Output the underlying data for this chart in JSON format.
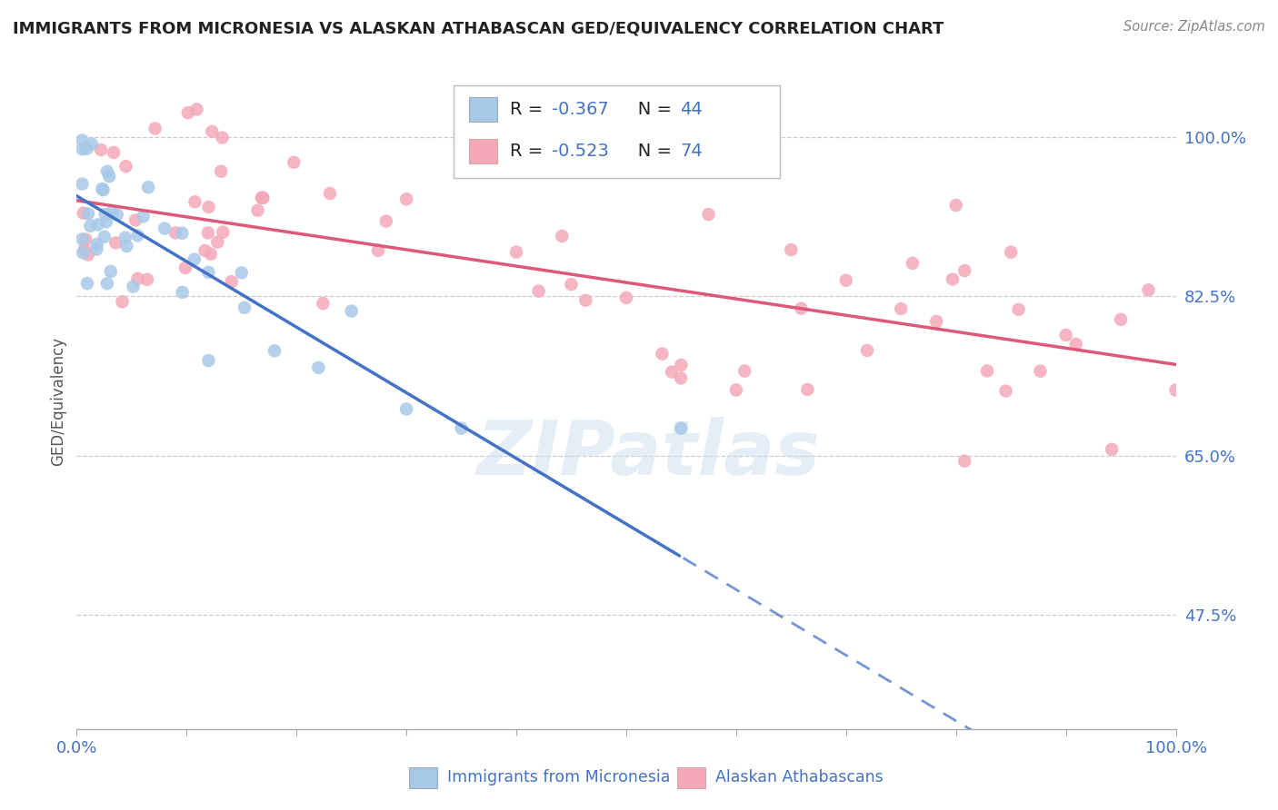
{
  "title": "IMMIGRANTS FROM MICRONESIA VS ALASKAN ATHABASCAN GED/EQUIVALENCY CORRELATION CHART",
  "source": "Source: ZipAtlas.com",
  "ylabel": "GED/Equivalency",
  "watermark": "ZIPatlas",
  "xlim": [
    0.0,
    100.0
  ],
  "ylim": [
    35.0,
    107.0
  ],
  "yticks": [
    47.5,
    65.0,
    82.5,
    100.0
  ],
  "ytick_labels": [
    "47.5%",
    "65.0%",
    "82.5%",
    "100.0%"
  ],
  "blue_color": "#a8c8e8",
  "pink_color": "#f4a8b8",
  "blue_line_color": "#4472c4",
  "pink_line_color": "#e05878",
  "text_color": "#4472c4",
  "label_color": "#333333",
  "legend_R_blue": "-0.367",
  "legend_N_blue": "44",
  "legend_R_pink": "-0.523",
  "legend_N_pink": "74",
  "legend_label_blue": "Immigrants from Micronesia",
  "legend_label_pink": "Alaskan Athabascans",
  "blue_x_start": 0,
  "blue_x_solid_end": 55,
  "blue_x_end": 100,
  "blue_y_start": 93.5,
  "blue_slope": -0.72,
  "pink_y_start": 93.0,
  "pink_slope": -0.18
}
